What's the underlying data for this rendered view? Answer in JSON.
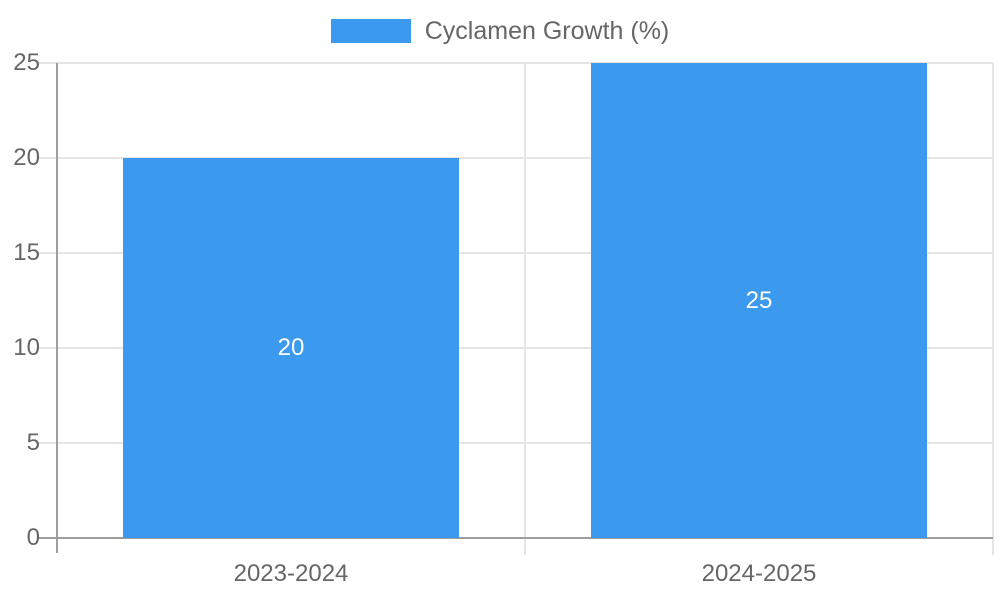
{
  "legend": {
    "label": "Cyclamen Growth (%)"
  },
  "chart_data": {
    "type": "bar",
    "title": "",
    "categories": [
      "2023-2024",
      "2024-2025"
    ],
    "series": [
      {
        "name": "Cyclamen Growth (%)",
        "values": [
          20,
          25
        ]
      }
    ],
    "bar_labels": [
      "20",
      "25"
    ],
    "xlabel": "",
    "ylabel": "",
    "ylim": [
      0,
      25
    ],
    "yticks": [
      0,
      5,
      10,
      15,
      20,
      25
    ],
    "grid": true,
    "legend_position": "top",
    "colors": {
      "bar": "#3B99EE",
      "axis": "#9E9E9E",
      "grid": "#E5E5E5",
      "text": "#666666",
      "bar_label": "#FFFFFF"
    }
  }
}
